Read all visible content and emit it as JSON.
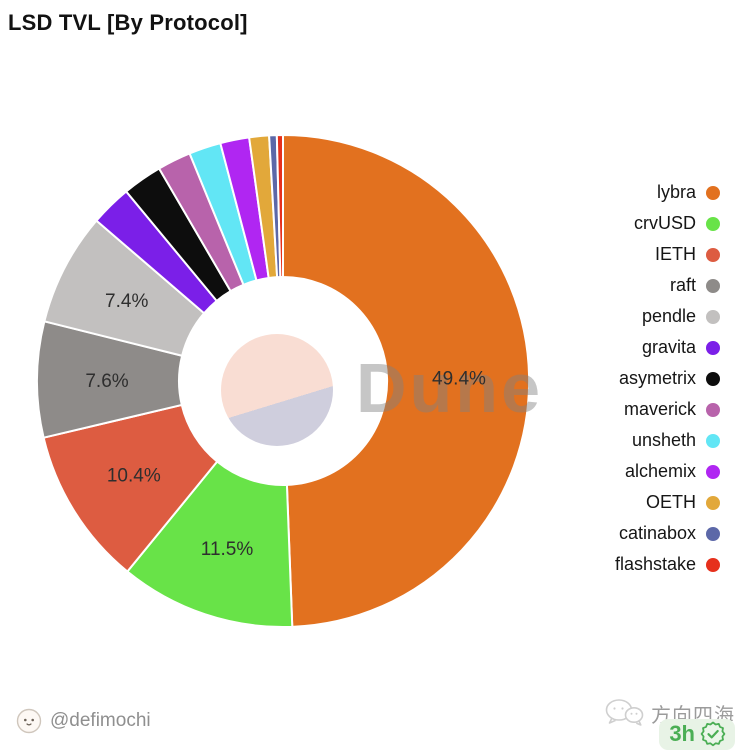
{
  "header": {
    "title": "LSD TVL [By Protocol]"
  },
  "watermark": {
    "text": "Dune"
  },
  "chart_data": {
    "type": "pie",
    "subtype": "donut",
    "title": "LSD TVL [By Protocol]",
    "unit": "%",
    "start_angle": "12 o'clock",
    "direction": "clockwise",
    "legend_position": "right",
    "labels_shown_for": [
      "lybra",
      "crvUSD",
      "IETH",
      "raft",
      "pendle"
    ],
    "slices": [
      {
        "label": "lybra",
        "value": 49.4,
        "color": "#e2711f",
        "pct_label": "49.4%"
      },
      {
        "label": "crvUSD",
        "value": 11.5,
        "color": "#68e348",
        "pct_label": "11.5%"
      },
      {
        "label": "IETH",
        "value": 10.4,
        "color": "#dd5c41",
        "pct_label": "10.4%"
      },
      {
        "label": "raft",
        "value": 7.6,
        "color": "#8e8b89",
        "pct_label": "7.6%"
      },
      {
        "label": "pendle",
        "value": 7.4,
        "color": "#c2c0bf",
        "pct_label": "7.4%"
      },
      {
        "label": "gravita",
        "value": 2.7,
        "color": "#7b1fe8"
      },
      {
        "label": "asymetrix",
        "value": 2.6,
        "color": "#0d0d0d"
      },
      {
        "label": "maverick",
        "value": 2.2,
        "color": "#b863ab"
      },
      {
        "label": "unsheth",
        "value": 2.1,
        "color": "#62e6f5"
      },
      {
        "label": "alchemix",
        "value": 1.9,
        "color": "#b026f2"
      },
      {
        "label": "OETH",
        "value": 1.3,
        "color": "#e2a83a"
      },
      {
        "label": "catinabox",
        "value": 0.5,
        "color": "#5c68a8"
      },
      {
        "label": "flashstake",
        "value": 0.4,
        "color": "#e6301c"
      }
    ],
    "center_logo_colors": {
      "top": "#f9ddd3",
      "bottom": "#cfcedd"
    }
  },
  "footer": {
    "author": "@defimochi",
    "channel": "方向四海",
    "badge_time": "3h",
    "badge_color": "#4aae54"
  }
}
